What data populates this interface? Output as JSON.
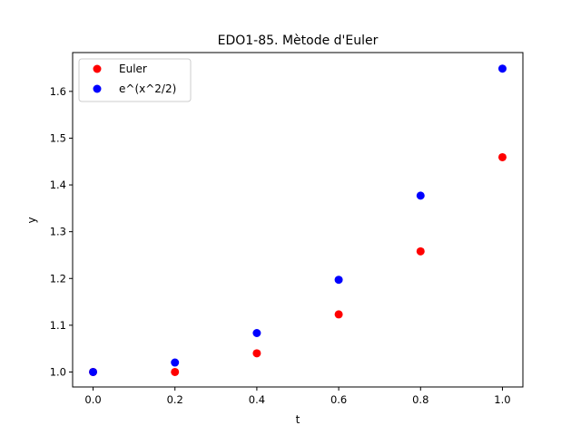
{
  "chart_data": {
    "type": "scatter",
    "title": "EDO1-85. Mètode d'Euler",
    "xlabel": "t",
    "ylabel": "y",
    "xlim": [
      -0.05,
      1.05
    ],
    "ylim": [
      0.968,
      1.683
    ],
    "xticks": [
      "0.0",
      "0.2",
      "0.4",
      "0.6",
      "0.8",
      "1.0"
    ],
    "yticks": [
      "1.0",
      "1.1",
      "1.2",
      "1.3",
      "1.4",
      "1.5",
      "1.6"
    ],
    "grid": false,
    "legend_position": "top-left",
    "series": [
      {
        "name": "Euler",
        "color": "#ff0000",
        "x": [
          0.0,
          0.2,
          0.4,
          0.6,
          0.8,
          1.0
        ],
        "y": [
          1.0,
          1.0,
          1.04,
          1.1232,
          1.258,
          1.4593
        ]
      },
      {
        "name": "e^(x^2/2)",
        "color": "#0000ff",
        "x": [
          0.0,
          0.2,
          0.4,
          0.6,
          0.8,
          1.0
        ],
        "y": [
          1.0,
          1.0202,
          1.0833,
          1.1972,
          1.3771,
          1.6487
        ]
      }
    ]
  }
}
